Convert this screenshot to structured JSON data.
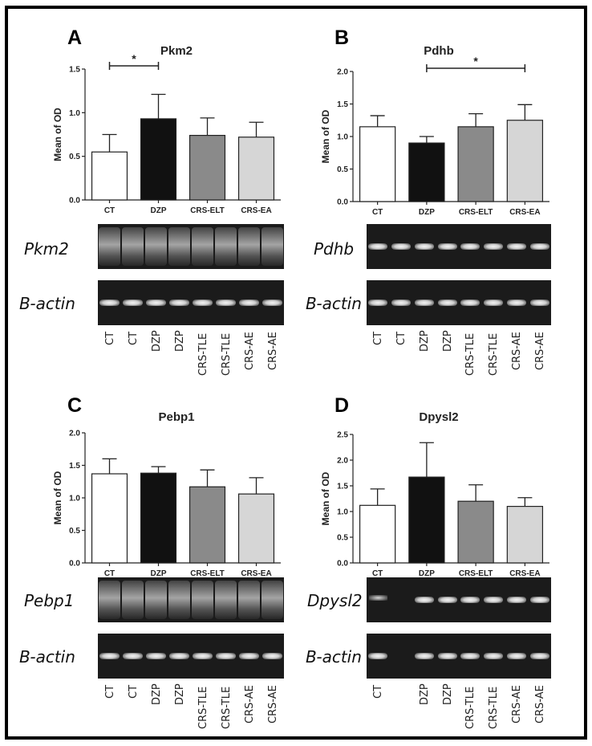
{
  "panels": [
    {
      "letter": "A",
      "title": "Pkm2",
      "blot_top_label": "Pkm2",
      "blot_bottom_label": "B-actin",
      "lanes": [
        "CT",
        "CT",
        "DZP",
        "DZP",
        "CRS-TLE",
        "CRS-TLE",
        "CRS-AE",
        "CRS-AE"
      ],
      "blot_top_style": "smear",
      "blot_bottom_style": "band"
    },
    {
      "letter": "B",
      "title": "Pdhb",
      "blot_top_label": "Pdhb",
      "blot_bottom_label": "B-actin",
      "lanes": [
        "CT",
        "CT",
        "DZP",
        "DZP",
        "CRS-TLE",
        "CRS-TLE",
        "CRS-AE",
        "CRS-AE"
      ],
      "blot_top_style": "band",
      "blot_bottom_style": "band"
    },
    {
      "letter": "C",
      "title": "Pebp1",
      "blot_top_label": "Pebp1",
      "blot_bottom_label": "B-actin",
      "lanes": [
        "CT",
        "CT",
        "DZP",
        "DZP",
        "CRS-TLE",
        "CRS-TLE",
        "CRS-AE",
        "CRS-AE"
      ],
      "blot_top_style": "smear",
      "blot_bottom_style": "band"
    },
    {
      "letter": "D",
      "title": "Dpysl2",
      "blot_top_label": "Dpysl2",
      "blot_bottom_label": "B-actin",
      "lanes": [
        "CT",
        "",
        "DZP",
        "DZP",
        "CRS-TLE",
        "CRS-TLE",
        "CRS-AE",
        "CRS-AE"
      ],
      "blot_top_style": "band",
      "blot_bottom_style": "band"
    }
  ],
  "chart_data": [
    {
      "type": "bar",
      "title": "Pkm2",
      "ylabel": "Mean of OD",
      "categories": [
        "CT",
        "DZP",
        "CRS-ELT",
        "CRS-EA"
      ],
      "values": [
        0.55,
        0.93,
        0.74,
        0.72
      ],
      "errors": [
        0.2,
        0.28,
        0.2,
        0.17
      ],
      "ylim": [
        0,
        1.5
      ],
      "yticks": [
        "0.0",
        "0.5",
        "1.0",
        "1.5"
      ],
      "colors": [
        "#ffffff",
        "#111111",
        "#8a8a8a",
        "#d6d6d6"
      ],
      "significance": [
        {
          "from": 0,
          "to": 1,
          "label": "*"
        }
      ]
    },
    {
      "type": "bar",
      "title": "Pdhb",
      "ylabel": "Mean of OD",
      "categories": [
        "CT",
        "DZP",
        "CRS-ELT",
        "CRS-EA"
      ],
      "values": [
        1.15,
        0.9,
        1.15,
        1.25
      ],
      "errors": [
        0.17,
        0.1,
        0.2,
        0.24
      ],
      "ylim": [
        0,
        2.0
      ],
      "yticks": [
        "0.0",
        "0.5",
        "1.0",
        "1.5",
        "2.0"
      ],
      "colors": [
        "#ffffff",
        "#111111",
        "#8a8a8a",
        "#d6d6d6"
      ],
      "significance": [
        {
          "from": 1,
          "to": 3,
          "label": "*"
        }
      ]
    },
    {
      "type": "bar",
      "title": "Pebp1",
      "ylabel": "Mean of OD",
      "categories": [
        "CT",
        "DZP",
        "CRS-ELT",
        "CRS-EA"
      ],
      "values": [
        1.37,
        1.38,
        1.17,
        1.06
      ],
      "errors": [
        0.23,
        0.1,
        0.26,
        0.25
      ],
      "ylim": [
        0,
        2.0
      ],
      "yticks": [
        "0.0",
        "0.5",
        "1.0",
        "1.5",
        "2.0"
      ],
      "colors": [
        "#ffffff",
        "#111111",
        "#8a8a8a",
        "#d6d6d6"
      ],
      "significance": []
    },
    {
      "type": "bar",
      "title": "Dpysl2",
      "ylabel": "Mean of OD",
      "categories": [
        "CT",
        "DZP",
        "CRS-ELT",
        "CRS-EA"
      ],
      "values": [
        1.12,
        1.67,
        1.2,
        1.1
      ],
      "errors": [
        0.32,
        0.67,
        0.32,
        0.17
      ],
      "ylim": [
        0,
        2.5
      ],
      "yticks": [
        "0.0",
        "0.5",
        "1.0",
        "1.5",
        "2.0",
        "2.5"
      ],
      "colors": [
        "#ffffff",
        "#111111",
        "#8a8a8a",
        "#d6d6d6"
      ],
      "significance": []
    }
  ]
}
